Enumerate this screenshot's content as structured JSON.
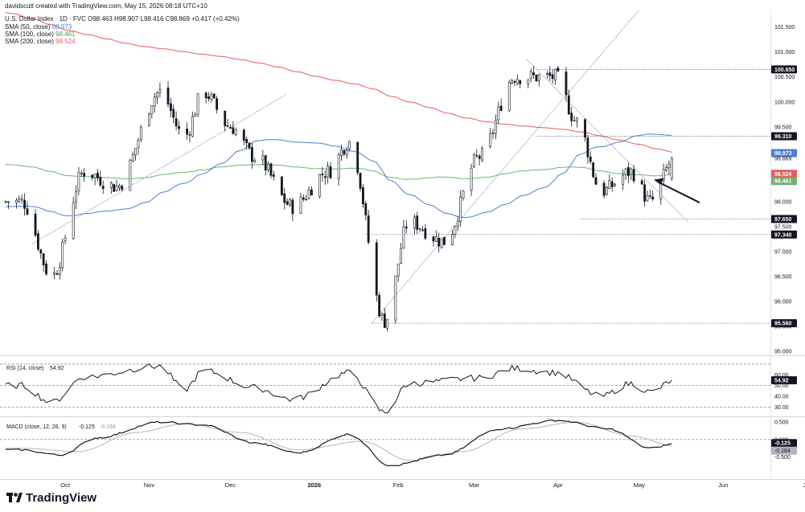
{
  "header": {
    "created_by": "davidscutt created with TradingView.com, May 15, 2026 08:18 UTC+10",
    "symbol_line": "U.S. Dollar Index · 1D · FVC  O98.463  H98.907  L98.416  C98.869  +0.417 (+0.42%)",
    "sma50_label": "SMA (50, close)",
    "sma50_value": "98.973",
    "sma100_label": "SMA (100, close)",
    "sma100_value": "98.461",
    "sma200_label": "SMA (200, close)",
    "sma200_value": "98.524"
  },
  "colors": {
    "up": "#ffffff",
    "down": "#131722",
    "sma50": "#4e7fd6",
    "sma100": "#6fb36f",
    "sma200": "#e65c5c"
  },
  "chart_data": [
    {
      "type": "candlestick",
      "title": "U.S. Dollar Index · 1D · FVC",
      "ylim": [
        94.95,
        101.85
      ],
      "y_ticks": [
        "101.500",
        "101.000",
        "100.500",
        "100.000",
        "99.500",
        "99.000",
        "98.500",
        "98.000",
        "97.500",
        "97.000",
        "96.500",
        "96.000",
        "95.500",
        "95.000"
      ],
      "x_ticks": [
        "Oct",
        "Nov",
        "Dec",
        "2026",
        "Feb",
        "Mar",
        "Apr",
        "May",
        "Jun",
        "J"
      ],
      "price_labels": [
        {
          "text": "100.650",
          "value": 100.65,
          "style": "dark"
        },
        {
          "text": "99.310",
          "value": 99.31,
          "style": "dark"
        },
        {
          "text": "98.973",
          "value": 98.973,
          "style": "blue"
        },
        {
          "text": "98.869",
          "value": 98.869,
          "style": "plain"
        },
        {
          "text": "98.524",
          "value": 98.524,
          "style": "red"
        },
        {
          "text": "98.461",
          "value": 98.461,
          "style": "green"
        },
        {
          "text": "97.650",
          "value": 97.65,
          "style": "dark"
        },
        {
          "text": "97.340",
          "value": 97.34,
          "style": "dark"
        },
        {
          "text": "95.560",
          "value": 95.56,
          "style": "dark"
        }
      ],
      "horizontal_levels": [
        100.65,
        99.31,
        97.65,
        97.34,
        95.56
      ],
      "key_points": [
        {
          "date": "Sep 15",
          "close": 98.0
        },
        {
          "date": "Sep 26",
          "close": 96.5
        },
        {
          "date": "Oct 8",
          "close": 98.6
        },
        {
          "date": "Oct 20",
          "close": 98.3
        },
        {
          "date": "Nov 5",
          "close": 100.2
        },
        {
          "date": "Nov 14",
          "close": 99.3
        },
        {
          "date": "Nov 21",
          "close": 100.2
        },
        {
          "date": "Dec 1",
          "close": 99.5
        },
        {
          "date": "Dec 10",
          "close": 98.9
        },
        {
          "date": "Dec 24",
          "close": 97.9
        },
        {
          "date": "Jan 6",
          "close": 98.6
        },
        {
          "date": "Jan 14",
          "close": 99.2
        },
        {
          "date": "Jan 27",
          "close": 95.6
        },
        {
          "date": "Feb 5",
          "close": 97.6
        },
        {
          "date": "Feb 18",
          "close": 97.2
        },
        {
          "date": "Mar 3",
          "close": 98.9
        },
        {
          "date": "Mar 16",
          "close": 100.5
        },
        {
          "date": "Mar 31",
          "close": 100.5
        },
        {
          "date": "Apr 8",
          "close": 99.6
        },
        {
          "date": "Apr 17",
          "close": 98.2
        },
        {
          "date": "Apr 28",
          "close": 98.6
        },
        {
          "date": "May 5",
          "close": 98.0
        },
        {
          "date": "May 14",
          "close": 98.869
        }
      ],
      "series": [
        {
          "name": "SMA (50, close)",
          "last": 98.973
        },
        {
          "name": "SMA (100, close)",
          "last": 98.461
        },
        {
          "name": "SMA (200, close)",
          "last": 98.524
        }
      ]
    },
    {
      "type": "line",
      "title": "RSI (14, close)",
      "last_value": "54.92",
      "ylim": [
        22,
        76
      ],
      "y_ticks": [
        "60.00",
        "50.00",
        "40.00",
        "30.00"
      ],
      "levels": [
        70,
        50,
        30
      ],
      "key_points": [
        {
          "date": "Sep 15",
          "value": 50
        },
        {
          "date": "Sep 26",
          "value": 34
        },
        {
          "date": "Oct 8",
          "value": 58
        },
        {
          "date": "Nov 5",
          "value": 68
        },
        {
          "date": "Nov 14",
          "value": 46
        },
        {
          "date": "Nov 21",
          "value": 64
        },
        {
          "date": "Dec 10",
          "value": 48
        },
        {
          "date": "Dec 24",
          "value": 37
        },
        {
          "date": "Jan 14",
          "value": 62
        },
        {
          "date": "Jan 27",
          "value": 25
        },
        {
          "date": "Feb 5",
          "value": 52
        },
        {
          "date": "Mar 3",
          "value": 57
        },
        {
          "date": "Mar 16",
          "value": 66
        },
        {
          "date": "Mar 31",
          "value": 62
        },
        {
          "date": "Apr 17",
          "value": 40
        },
        {
          "date": "Apr 28",
          "value": 52
        },
        {
          "date": "May 5",
          "value": 44
        },
        {
          "date": "May 14",
          "value": 54.92
        }
      ]
    },
    {
      "type": "line",
      "title": "MACD (close, 12, 26, 9)",
      "macd_value": "-0.125",
      "signal_value": "-0.184",
      "ylim": [
        -1.0,
        0.62
      ],
      "y_ticks": [
        "0.500",
        "0.000",
        "-0.500"
      ],
      "series": [
        {
          "name": "MACD",
          "key_points": [
            {
              "date": "Sep 15",
              "value": -0.3
            },
            {
              "date": "Sep 29",
              "value": -0.45
            },
            {
              "date": "Oct 13",
              "value": 0.05
            },
            {
              "date": "Nov 5",
              "value": 0.5
            },
            {
              "date": "Nov 21",
              "value": 0.42
            },
            {
              "date": "Dec 10",
              "value": -0.1
            },
            {
              "date": "Dec 26",
              "value": -0.38
            },
            {
              "date": "Jan 14",
              "value": 0.15
            },
            {
              "date": "Jan 29",
              "value": -0.75
            },
            {
              "date": "Feb 18",
              "value": -0.45
            },
            {
              "date": "Mar 10",
              "value": 0.3
            },
            {
              "date": "Apr 1",
              "value": 0.55
            },
            {
              "date": "Apr 20",
              "value": 0.3
            },
            {
              "date": "May 5",
              "value": -0.25
            },
            {
              "date": "May 14",
              "value": -0.125
            }
          ]
        },
        {
          "name": "Signal",
          "key_points": [
            {
              "date": "Sep 15",
              "value": -0.25
            },
            {
              "date": "Oct 6",
              "value": -0.35
            },
            {
              "date": "Oct 27",
              "value": 0.2
            },
            {
              "date": "Nov 14",
              "value": 0.45
            },
            {
              "date": "Dec 5",
              "value": 0.2
            },
            {
              "date": "Dec 26",
              "value": -0.3
            },
            {
              "date": "Jan 19",
              "value": -0.05
            },
            {
              "date": "Feb 5",
              "value": -0.6
            },
            {
              "date": "Feb 25",
              "value": -0.35
            },
            {
              "date": "Mar 18",
              "value": 0.3
            },
            {
              "date": "Apr 8",
              "value": 0.5
            },
            {
              "date": "Apr 28",
              "value": 0.1
            },
            {
              "date": "May 14",
              "value": -0.184
            }
          ]
        }
      ]
    }
  ],
  "footer": {
    "brand": "TradingView"
  }
}
